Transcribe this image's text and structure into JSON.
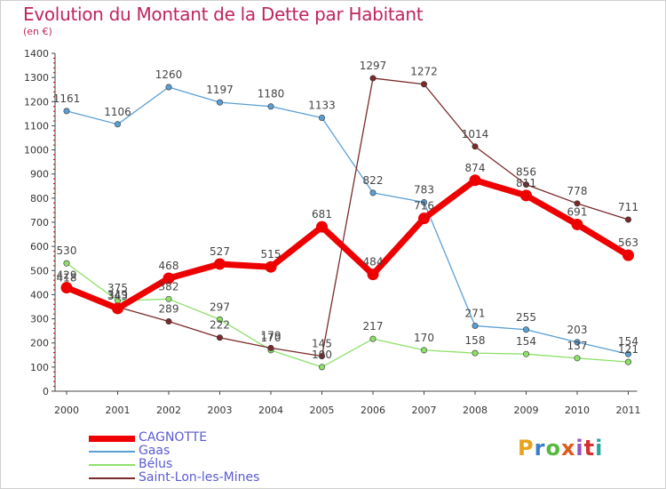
{
  "header": {
    "title": "Evolution du Montant de la Dette par Habitant",
    "subtitle": "(en €)"
  },
  "logo": {
    "text": "Proxiti",
    "colors": [
      "#e8a21c",
      "#3a7fc7",
      "#56b93e",
      "#e05a1a",
      "#9b4fc4",
      "#d4302f",
      "#2aa6a0"
    ]
  },
  "chart_data": {
    "type": "line",
    "title": "Evolution du Montant de la Dette par Habitant",
    "subtitle": "(en €)",
    "xlabel": "",
    "ylabel": "",
    "ylim": [
      0,
      1400
    ],
    "yticks": [
      0,
      100,
      200,
      300,
      400,
      500,
      600,
      700,
      800,
      900,
      1000,
      1100,
      1200,
      1300,
      1400
    ],
    "categories": [
      "2000",
      "2001",
      "2002",
      "2003",
      "2004",
      "2005",
      "2006",
      "2007",
      "2008",
      "2009",
      "2010",
      "2011"
    ],
    "grid": false,
    "legend_position": "bottom-left",
    "series": [
      {
        "name": "Gaas",
        "color": "#5a9fd4",
        "values": [
          1161,
          1106,
          1260,
          1197,
          1180,
          1133,
          822,
          783,
          271,
          255,
          203,
          154
        ]
      },
      {
        "name": "Bélus",
        "color": "#8ee06a",
        "values": [
          530,
          375,
          382,
          297,
          170,
          100,
          217,
          170,
          158,
          154,
          137,
          121
        ]
      },
      {
        "name": "Saint-Lon-les-Mines",
        "color": "#7a2a2a",
        "values": [
          418,
          349,
          289,
          222,
          179,
          145,
          1297,
          1272,
          1014,
          856,
          778,
          711
        ]
      },
      {
        "name": "CAGNOTTE",
        "color": "#ee0000",
        "values": [
          429,
          343,
          468,
          527,
          515,
          681,
          484,
          716,
          874,
          811,
          691,
          563
        ]
      }
    ]
  }
}
